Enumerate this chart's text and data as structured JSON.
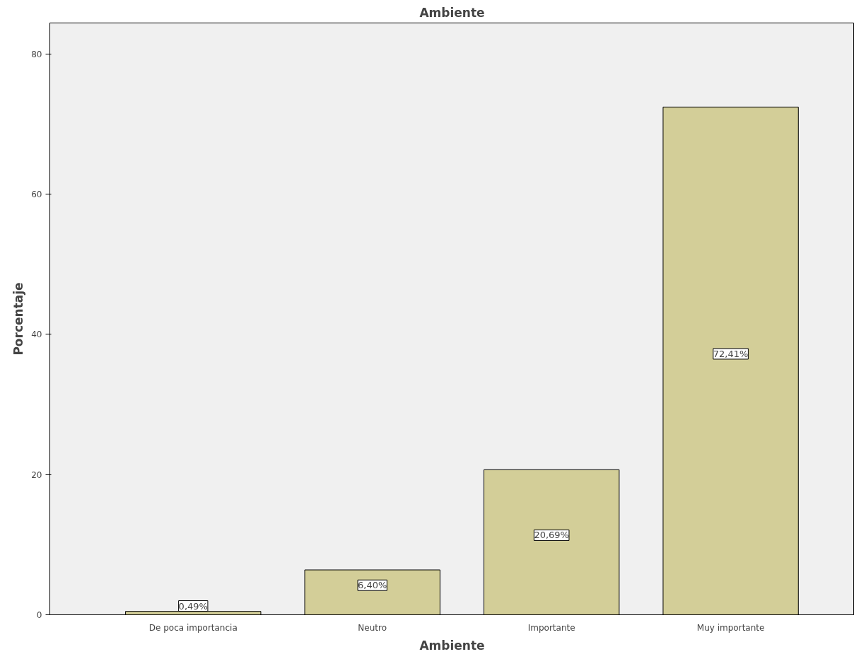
{
  "chart_data": {
    "type": "bar",
    "title": "Ambiente",
    "xlabel": "Ambiente",
    "ylabel": "Porcentaje",
    "categories": [
      "De poca importancia",
      "Neutro",
      "Importante",
      "Muy importante"
    ],
    "values": [
      0.49,
      6.4,
      20.69,
      72.41
    ],
    "value_labels": [
      "0,49%",
      "6,40%",
      "20,69%",
      "72,41%"
    ],
    "color": "#d3ce98",
    "ylim": [
      0,
      84.4
    ],
    "yticks": [
      0,
      20,
      40,
      60,
      80
    ],
    "grid": false
  }
}
